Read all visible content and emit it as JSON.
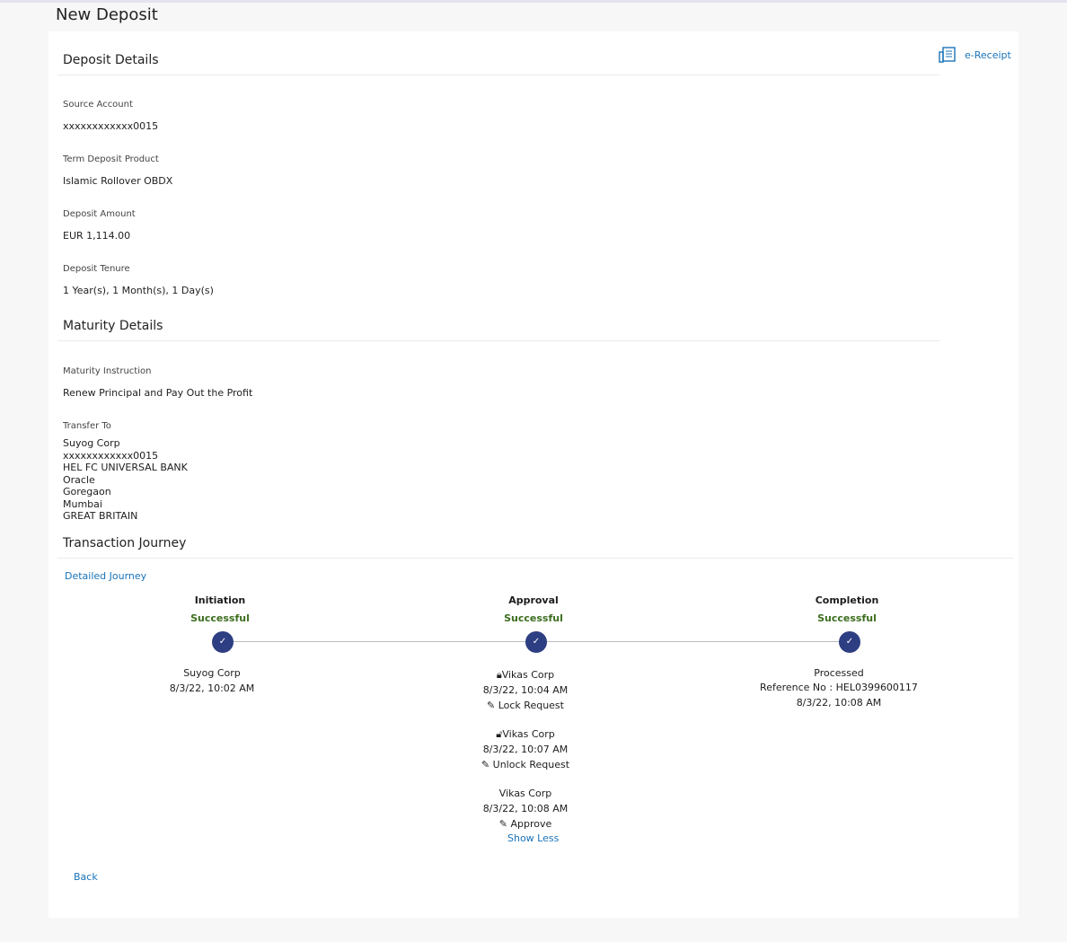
{
  "page_title": "New Deposit",
  "ereceipt": "e-Receipt",
  "deposit_details": {
    "heading": "Deposit Details",
    "fields": [
      {
        "label": "Source Account",
        "value": "xxxxxxxxxxxx0015"
      },
      {
        "label": "Term Deposit Product",
        "value": "Islamic Rollover OBDX"
      },
      {
        "label": "Deposit Amount",
        "value": "EUR 1,114.00"
      },
      {
        "label": "Deposit Tenure",
        "value": "1 Year(s), 1 Month(s), 1 Day(s)"
      }
    ]
  },
  "maturity_details": {
    "heading": "Maturity Details",
    "instruction_label": "Maturity Instruction",
    "instruction_value": "Renew Principal and Pay Out the Profit",
    "transfer_label": "Transfer To",
    "transfer_lines": [
      "Suyog Corp",
      "xxxxxxxxxxxx0015",
      "HEL FC UNIVERSAL BANK",
      "Oracle",
      "Goregaon",
      "Mumbai",
      "GREAT BRITAIN"
    ]
  },
  "journey": {
    "heading": "Transaction Journey",
    "detailed_link": "Detailed Journey",
    "initiation": {
      "title": "Initiation",
      "status": "Successful",
      "user": "Suyog Corp",
      "time": "8/3/22, 10:02 AM"
    },
    "approval": {
      "title": "Approval",
      "status": "Successful",
      "events": [
        {
          "user": "Vikas Corp",
          "time": "8/3/22, 10:04 AM",
          "action": "Lock Request"
        },
        {
          "user": "Vikas Corp",
          "time": "8/3/22, 10:07 AM",
          "action": "Unlock Request"
        },
        {
          "user": "Vikas Corp",
          "time": "8/3/22, 10:08 AM",
          "action": "Approve"
        }
      ],
      "show_less": "Show Less"
    },
    "completion": {
      "title": "Completion",
      "status": "Successful",
      "line1": "Processed",
      "line2": "Reference No : HEL0399600117",
      "time": "8/3/22, 10:08 AM"
    }
  },
  "back": "Back",
  "colors": {
    "accent": "#1a73b8",
    "success": "#3c6e1e",
    "step": "#2e3e82"
  }
}
